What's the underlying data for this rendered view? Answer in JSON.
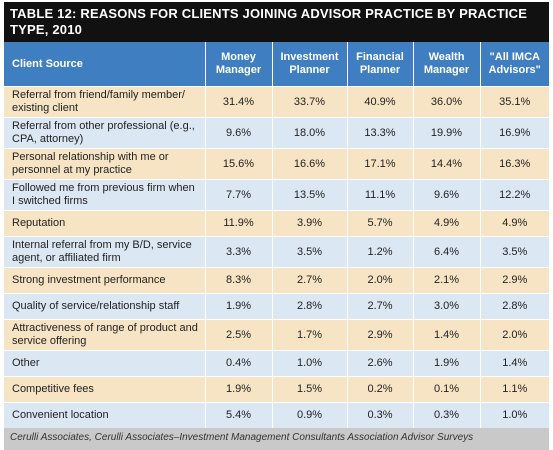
{
  "title": "TABLE 12: REASONS FOR CLIENTS JOINING ADVISOR PRACTICE BY PRACTICE TYPE, 2010",
  "table": {
    "columns": [
      "Client Source",
      "Money Manager",
      "Investment Planner",
      "Financial Planner",
      "Wealth Manager",
      "\"All IMCA Advisors\""
    ],
    "rows": [
      [
        "Referral from friend/family member/ existing client",
        "31.4%",
        "33.7%",
        "40.9%",
        "36.0%",
        "35.1%"
      ],
      [
        "Referral from other professional (e.g., CPA, attorney)",
        "9.6%",
        "18.0%",
        "13.3%",
        "19.9%",
        "16.9%"
      ],
      [
        "Personal relationship with me or personnel at my practice",
        "15.6%",
        "16.6%",
        "17.1%",
        "14.4%",
        "16.3%"
      ],
      [
        "Followed me from previous firm when I switched firms",
        "7.7%",
        "13.5%",
        "11.1%",
        "9.6%",
        "12.2%"
      ],
      [
        "Reputation",
        "11.9%",
        "3.9%",
        "5.7%",
        "4.9%",
        "4.9%"
      ],
      [
        "Internal referral from my B/D, service agent, or affiliated firm",
        "3.3%",
        "3.5%",
        "1.2%",
        "6.4%",
        "3.5%"
      ],
      [
        "Strong investment performance",
        "8.3%",
        "2.7%",
        "2.0%",
        "2.1%",
        "2.9%"
      ],
      [
        "Quality of service/relationship staff",
        "1.9%",
        "2.8%",
        "2.7%",
        "3.0%",
        "2.8%"
      ],
      [
        "Attractiveness of range of product and service offering",
        "2.5%",
        "1.7%",
        "2.9%",
        "1.4%",
        "2.0%"
      ],
      [
        "Other",
        "0.4%",
        "1.0%",
        "2.6%",
        "1.9%",
        "1.4%"
      ],
      [
        "Competitive fees",
        "1.9%",
        "1.5%",
        "0.2%",
        "0.1%",
        "1.1%"
      ],
      [
        "Convenient location",
        "5.4%",
        "0.9%",
        "0.3%",
        "0.3%",
        "1.0%"
      ]
    ]
  },
  "source": "Cerulli Associates, Cerulli Associates–Investment Management Consultants Association Advisor Surveys"
}
